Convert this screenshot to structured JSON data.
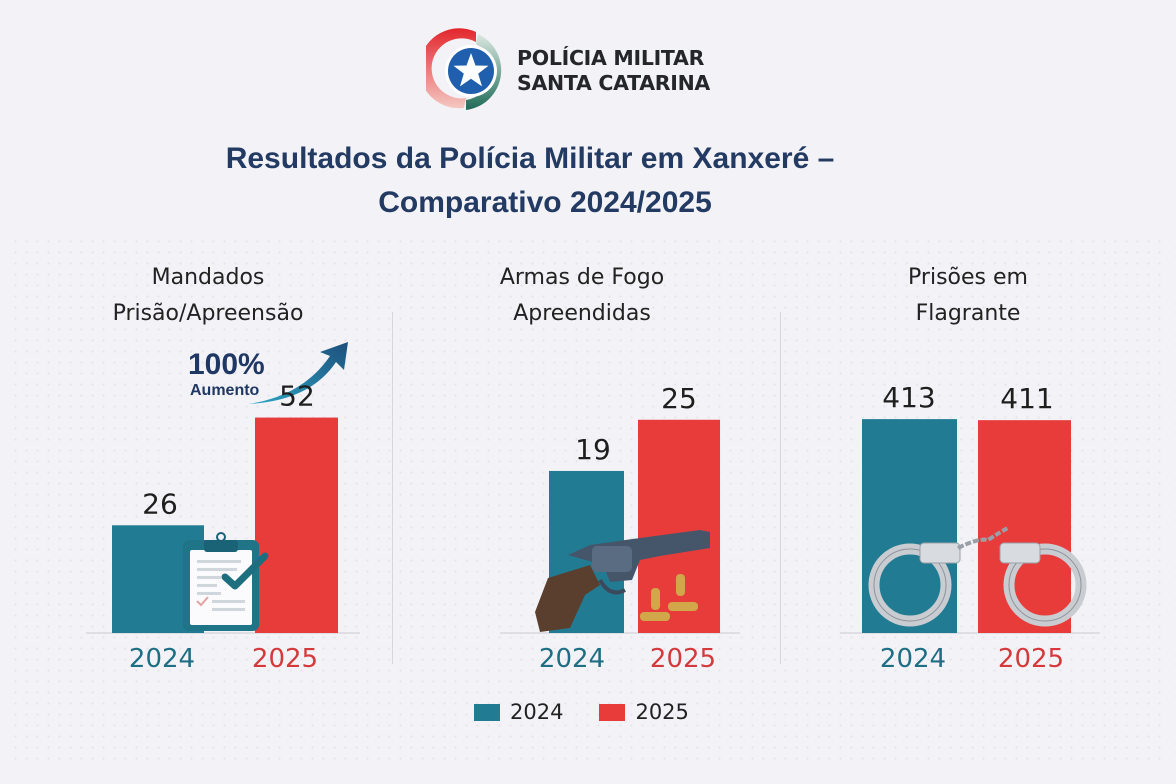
{
  "header": {
    "org_line1": "POLÍCIA MILITAR",
    "org_line2": "SANTA CATARINA",
    "title_line1": "Resultados da Polícia Militar em Xanxeré –",
    "title_line2": "Comparativo 2024/2025"
  },
  "colors": {
    "series_2024": "#217c93",
    "series_2025": "#e83c3b",
    "title": "#233a63",
    "year_2024_label": "#1f6f84",
    "year_2025_label": "#d43a3c"
  },
  "badge": {
    "percent": "100%",
    "label": "Aumento",
    "icon": "trend-arrow-up-icon"
  },
  "legend": [
    {
      "label": "2024",
      "color": "#217c93"
    },
    {
      "label": "2025",
      "color": "#e83c3b"
    }
  ],
  "chart_data": [
    {
      "type": "bar",
      "title_lines": [
        "Mandados",
        "Prisão/Apreensão"
      ],
      "categories": [
        "2024",
        "2025"
      ],
      "values": [
        26,
        52
      ],
      "value_labels": [
        "26",
        "52"
      ],
      "annotation": "100% Aumento",
      "icon": "clipboard-check-icon",
      "xlabel": "",
      "ylabel": "",
      "ylim": [
        0,
        70
      ],
      "grid": false
    },
    {
      "type": "bar",
      "title_lines": [
        "Armas de Fogo",
        "Apreendidas"
      ],
      "categories": [
        "2024",
        "2025"
      ],
      "values": [
        19,
        25
      ],
      "value_labels": [
        "19",
        "25"
      ],
      "icon": "revolver-icon",
      "xlabel": "",
      "ylabel": "",
      "ylim": [
        0,
        34
      ],
      "grid": false
    },
    {
      "type": "bar",
      "title_lines": [
        "Prisões em",
        "Flagrante"
      ],
      "categories": [
        "2024",
        "2025"
      ],
      "values": [
        413,
        411
      ],
      "value_labels": [
        "413",
        "411"
      ],
      "icon": "handcuffs-icon",
      "xlabel": "",
      "ylabel": "",
      "ylim": [
        0,
        560
      ],
      "grid": false
    }
  ]
}
